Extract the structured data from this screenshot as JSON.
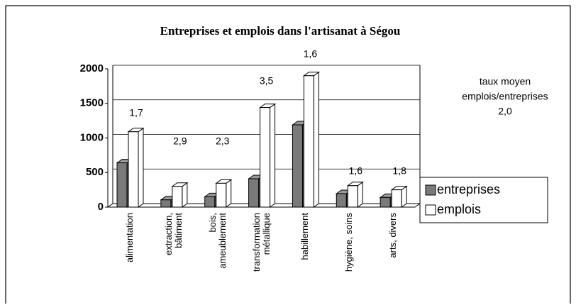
{
  "chart_data": {
    "type": "bar3d",
    "title": "Entreprises et emplois dans l'artisanat à Ségou",
    "categories": [
      "alimentation",
      "extraction,\nbâtiment",
      "bois,\nameublement",
      "transformation\nmétallique",
      "habillement",
      "hygiène, soins",
      "arts, divers"
    ],
    "series": [
      {
        "name": "entreprises",
        "color": "#7a7a7a",
        "values": [
          640,
          105,
          150,
          410,
          1190,
          195,
          140
        ]
      },
      {
        "name": "emplois",
        "color": "#ffffff",
        "values": [
          1090,
          300,
          345,
          1440,
          1900,
          310,
          250
        ]
      }
    ],
    "ratio_labels": [
      "1,7",
      "2,9",
      "2,3",
      "3,5",
      "1,6",
      "1,6",
      "1,8"
    ],
    "annotation": [
      "taux moyen",
      "emplois/entreprises",
      "2,0"
    ],
    "ylim": [
      0,
      2000
    ],
    "yticks": [
      0,
      500,
      1000,
      1500,
      2000
    ],
    "grid": true
  }
}
